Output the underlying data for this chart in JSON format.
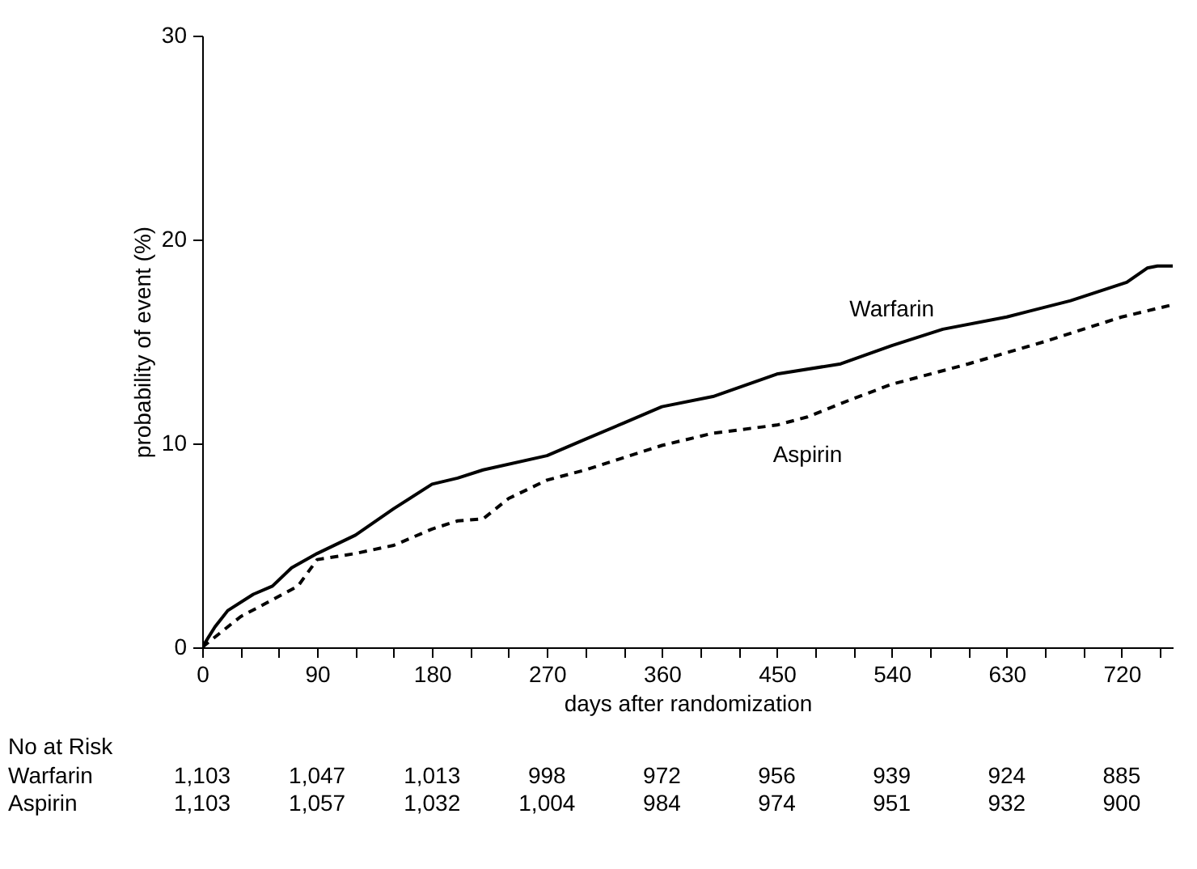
{
  "chart_data": {
    "type": "line",
    "xlabel": "days after randomization",
    "ylabel": "probability of event (%)",
    "xlim": [
      0,
      760
    ],
    "ylim": [
      0,
      30
    ],
    "xticks": [
      0,
      {
        "value": 30,
        "label": null
      },
      {
        "value": 60,
        "label": null
      },
      90,
      {
        "value": 120,
        "label": null
      },
      {
        "value": 150,
        "label": null
      },
      180,
      {
        "value": 210,
        "label": null
      },
      {
        "value": 240,
        "label": null
      },
      270,
      {
        "value": 300,
        "label": null
      },
      {
        "value": 330,
        "label": null
      },
      360,
      {
        "value": 390,
        "label": null
      },
      {
        "value": 420,
        "label": null
      },
      450,
      {
        "value": 480,
        "label": null
      },
      {
        "value": 510,
        "label": null
      },
      540,
      {
        "value": 570,
        "label": null
      },
      {
        "value": 600,
        "label": null
      },
      630,
      {
        "value": 660,
        "label": null
      },
      {
        "value": 690,
        "label": null
      },
      720,
      {
        "value": 750,
        "label": null
      }
    ],
    "yticks": [
      0,
      10,
      20,
      30
    ],
    "grid": false,
    "legend": false,
    "marker": "none",
    "series": [
      {
        "name": "Warfarin",
        "color": "#000000",
        "line_style": "solid",
        "x": [
          0,
          10,
          20,
          40,
          55,
          70,
          90,
          120,
          150,
          180,
          200,
          220,
          270,
          300,
          330,
          360,
          400,
          450,
          500,
          540,
          580,
          630,
          680,
          724,
          740,
          748,
          760
        ],
        "values": [
          0,
          1.0,
          1.8,
          2.6,
          3.0,
          3.9,
          4.6,
          5.5,
          6.8,
          8.0,
          8.3,
          8.7,
          9.4,
          10.2,
          11.0,
          11.8,
          12.3,
          13.4,
          13.9,
          14.8,
          15.6,
          16.2,
          17.0,
          17.9,
          18.6,
          18.7,
          18.7
        ]
      },
      {
        "name": "Aspirin",
        "color": "#000000",
        "line_style": "dashed",
        "x": [
          0,
          30,
          60,
          75,
          90,
          120,
          150,
          180,
          200,
          220,
          240,
          270,
          300,
          360,
          400,
          450,
          474,
          510,
          540,
          600,
          660,
          720,
          760
        ],
        "values": [
          0,
          1.5,
          2.5,
          3.0,
          4.3,
          4.6,
          5.0,
          5.8,
          6.2,
          6.3,
          7.3,
          8.2,
          8.7,
          9.9,
          10.5,
          10.9,
          11.3,
          12.2,
          12.9,
          13.9,
          15.0,
          16.2,
          16.8
        ]
      }
    ],
    "annotations": [
      "No at Risk",
      "Warfarin",
      "1,103",
      "1,047",
      "1,013",
      "998",
      "972",
      "956",
      "939",
      "924",
      "885",
      "Aspirin",
      "1,103",
      "1,057",
      "1,032",
      "1,004",
      "984",
      "974",
      "951",
      "932",
      "900"
    ]
  }
}
